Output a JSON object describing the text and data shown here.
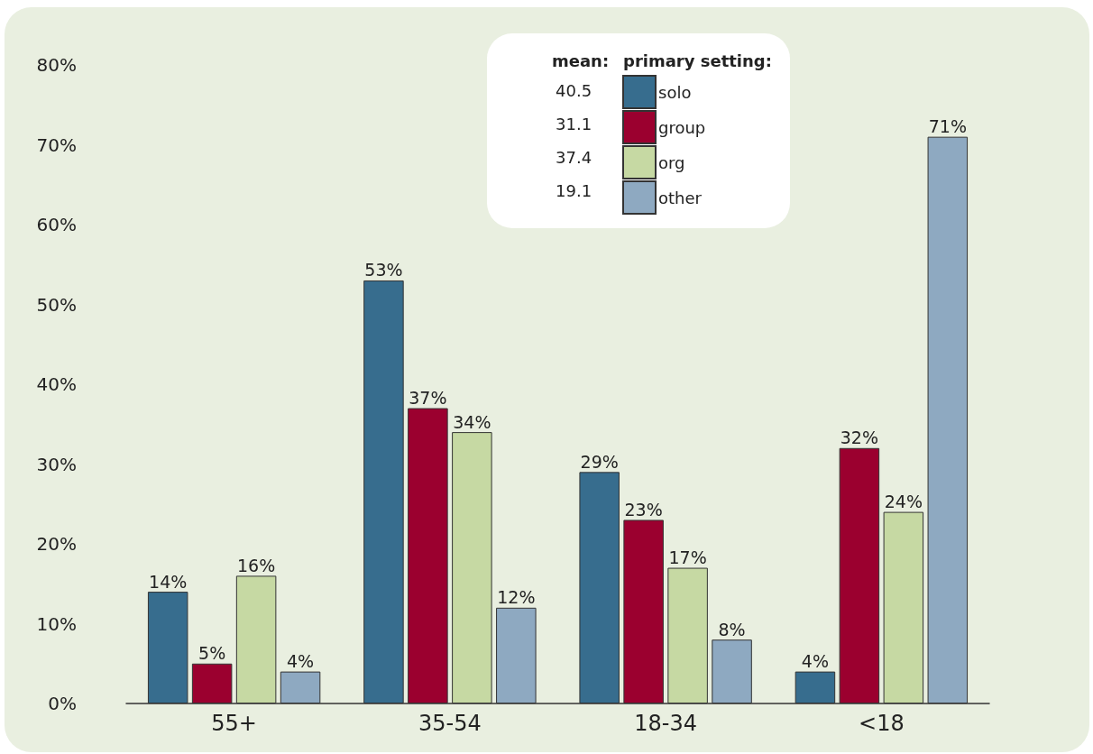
{
  "chart_data": {
    "type": "bar",
    "categories": [
      "55+",
      "35-54",
      "18-34",
      "<18"
    ],
    "series": [
      {
        "name": "solo",
        "color": "#376d8e",
        "values": [
          14,
          53,
          29,
          4
        ],
        "value_labels": [
          "14%",
          "53%",
          "29%",
          "4%"
        ]
      },
      {
        "name": "group",
        "color": "#9b002f",
        "values": [
          5,
          37,
          23,
          32
        ],
        "value_labels": [
          "5%",
          "37%",
          "23%",
          "32%"
        ]
      },
      {
        "name": "org",
        "color": "#c6d9a3",
        "values": [
          16,
          34,
          17,
          24
        ],
        "value_labels": [
          "16%",
          "34%",
          "17%",
          "24%"
        ]
      },
      {
        "name": "other",
        "color": "#8ea9c1",
        "values": [
          4,
          12,
          8,
          71
        ],
        "value_labels": [
          "4%",
          "12%",
          "8%",
          "71%"
        ]
      }
    ],
    "ylim": [
      0,
      80
    ],
    "yticks": [
      {
        "value": 0,
        "label": "0%"
      },
      {
        "value": 10,
        "label": "10%"
      },
      {
        "value": 20,
        "label": "20%"
      },
      {
        "value": 30,
        "label": "30%"
      },
      {
        "value": 40,
        "label": "40%"
      },
      {
        "value": 50,
        "label": "50%"
      },
      {
        "value": 60,
        "label": "60%"
      },
      {
        "value": 70,
        "label": "70%"
      },
      {
        "value": 80,
        "label": "80%"
      }
    ],
    "legend": "top right",
    "legend_title": "primary setting:",
    "annotations": [
      "mean:",
      "40.5",
      "31.1",
      "37.4",
      "19.1"
    ]
  }
}
